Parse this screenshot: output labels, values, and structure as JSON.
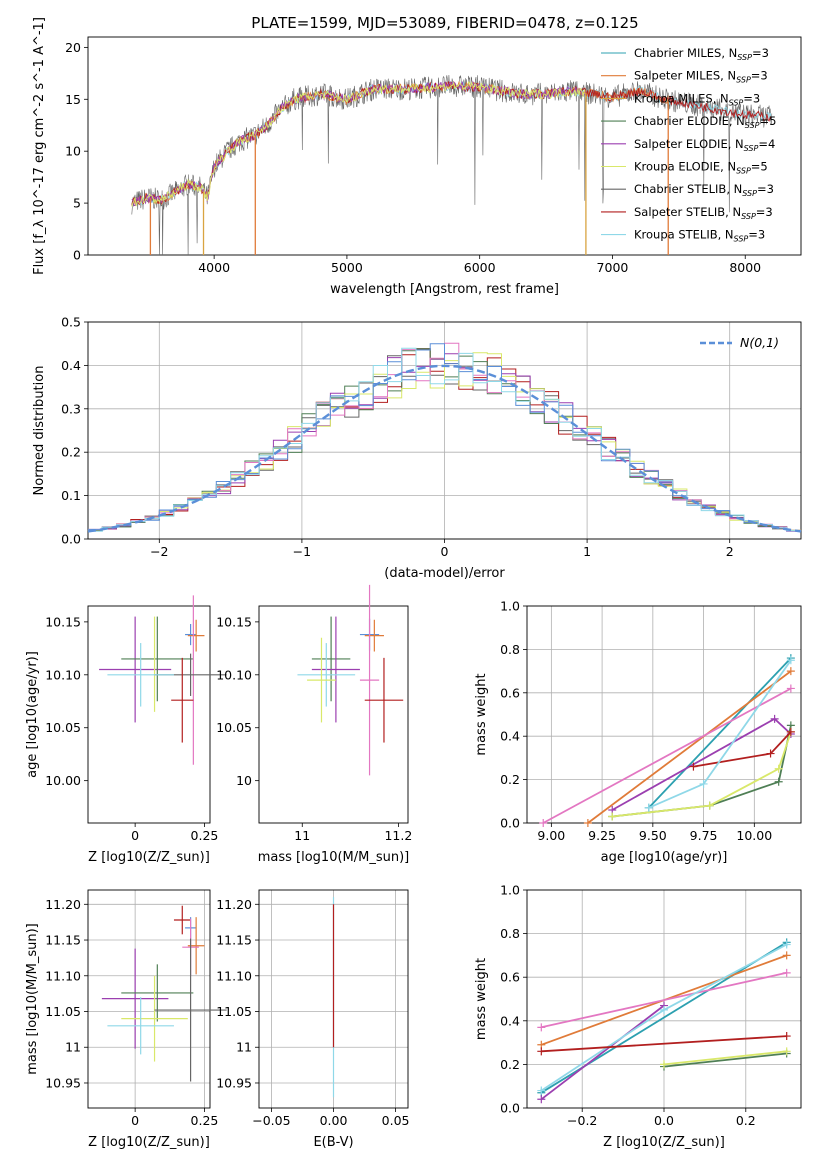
{
  "figure_title": "PLATE=1599, MJD=53089, FIBERID=0478, z=0.125",
  "colors": {
    "Chabrier MILES": "#2ca0b0",
    "Salpeter MILES": "#e07b39",
    "Kroupa MILES": "#d9a441",
    "Chabrier ELODIE": "#4f7f55",
    "Salpeter ELODIE": "#9b3fb0",
    "Kroupa ELODIE": "#d9e86a",
    "Chabrier STELIB": "#666666",
    "Salpeter STELIB": "#b21f1f",
    "Kroupa STELIB": "#8fd8e8",
    "pink": "#e377c2",
    "blue": "#5b8fd8"
  },
  "chart_data": [
    {
      "id": "spectrum",
      "type": "line",
      "xlabel": "wavelength [Angstrom, rest frame]",
      "ylabel": "Flux [f_λ 10^-17 erg cm^-2 s^-1 A^-1]",
      "xlim": [
        3050,
        8420
      ],
      "ylim": [
        0,
        21
      ],
      "xticks": [
        4000,
        5000,
        6000,
        7000,
        8000
      ],
      "yticks": [
        0,
        5,
        10,
        15,
        20
      ],
      "grid": false,
      "legend_position": "top-right",
      "legend": [
        {
          "label": "Chabrier MILES, N",
          "sub": "SSP",
          "tail": "=3",
          "color": "#2ca0b0"
        },
        {
          "label": "Salpeter MILES, N",
          "sub": "SSP",
          "tail": "=3",
          "color": "#e07b39"
        },
        {
          "label": "Kroupa MILES, N",
          "sub": "SSP",
          "tail": "=3",
          "color": "#d9a441"
        },
        {
          "label": "Chabrier ELODIE, N",
          "sub": "SSP",
          "tail": "=5",
          "color": "#4f7f55"
        },
        {
          "label": "Salpeter ELODIE, N",
          "sub": "SSP",
          "tail": "=4",
          "color": "#9b3fb0"
        },
        {
          "label": "Kroupa ELODIE, N",
          "sub": "SSP",
          "tail": "=5",
          "color": "#d9e86a"
        },
        {
          "label": "Chabrier STELIB, N",
          "sub": "SSP",
          "tail": "=3",
          "color": "#666666"
        },
        {
          "label": "Salpeter STELIB, N",
          "sub": "SSP",
          "tail": "=3",
          "color": "#b21f1f"
        },
        {
          "label": "Kroupa STELIB, N",
          "sub": "SSP",
          "tail": "=3",
          "color": "#8fd8e8"
        }
      ],
      "continuum_points": [
        [
          3380,
          5.0
        ],
        [
          3500,
          5.5
        ],
        [
          3600,
          5.3
        ],
        [
          3700,
          6.0
        ],
        [
          3800,
          6.8
        ],
        [
          3900,
          6.5
        ],
        [
          3950,
          5.5
        ],
        [
          4000,
          8.5
        ],
        [
          4100,
          10.0
        ],
        [
          4200,
          11.0
        ],
        [
          4300,
          11.5
        ],
        [
          4400,
          12.5
        ],
        [
          4500,
          14.0
        ],
        [
          4600,
          15.0
        ],
        [
          4800,
          15.5
        ],
        [
          5000,
          15.0
        ],
        [
          5200,
          16.0
        ],
        [
          5500,
          16.0
        ],
        [
          5800,
          16.3
        ],
        [
          6000,
          16.2
        ],
        [
          6300,
          15.5
        ],
        [
          6500,
          15.5
        ],
        [
          6700,
          15.8
        ],
        [
          7000,
          15.2
        ],
        [
          7200,
          15.8
        ],
        [
          7400,
          15.0
        ],
        [
          7600,
          14.5
        ],
        [
          7800,
          14.0
        ],
        [
          8000,
          13.5
        ],
        [
          8200,
          13.3
        ]
      ],
      "model_end_wavelength": {
        "MILES": 7420,
        "ELODIE": 6800,
        "STELIB": 8200
      }
    },
    {
      "id": "residuals",
      "type": "line",
      "xlabel": "(data-model)/error",
      "ylabel": "Normed distribution",
      "xlim": [
        -2.5,
        2.5
      ],
      "ylim": [
        0,
        0.5
      ],
      "xticks": [
        -2,
        -1,
        0,
        1,
        2
      ],
      "yticks": [
        0.0,
        0.1,
        0.2,
        0.3,
        0.4,
        0.5
      ],
      "grid": true,
      "legend_position": "top-right",
      "legend": [
        {
          "label": "N(0,1)",
          "style": "dashed",
          "color": "#5b8fd8"
        }
      ],
      "histogram": {
        "bin_start": -2.5,
        "bin_width": 0.1,
        "n_bins": 50
      },
      "gaussian": {
        "mean": 0,
        "sigma": 1
      }
    },
    {
      "id": "age_vs_Z",
      "type": "scatter",
      "xlabel": "Z [log10(Z/Z_sun)]",
      "ylabel": "age [log10(age/yr)]",
      "xlim": [
        -0.17,
        0.27
      ],
      "ylim": [
        9.96,
        10.165
      ],
      "xticks": [
        0.0,
        0.25
      ],
      "ytick_labels": [
        "10.15",
        "10.10",
        "10.05",
        "10.00"
      ],
      "yticks": [
        10.15,
        10.1,
        10.05,
        10.0
      ],
      "grid": false,
      "points": [
        {
          "x": 0.2,
          "y": 10.138,
          "xerr": 0.02,
          "yerr": 0.01,
          "color": "#5b8fd8"
        },
        {
          "x": 0.22,
          "y": 10.137,
          "xerr": 0.03,
          "yerr": 0.015,
          "color": "#e07b39"
        },
        {
          "x": 0.0,
          "y": 10.105,
          "xerr": 0.13,
          "yerr": 0.05,
          "color": "#9b3fb0"
        },
        {
          "x": 0.08,
          "y": 10.115,
          "xerr": 0.13,
          "yerr": 0.04,
          "color": "#4f7f55"
        },
        {
          "x": 0.07,
          "y": 10.11,
          "xerr": 0.0,
          "yerr": 0.045,
          "color": "#d9e86a"
        },
        {
          "x": 0.21,
          "y": 10.095,
          "xerr": 0.0,
          "yerr": 0.08,
          "color": "#e377c2"
        },
        {
          "x": 0.2,
          "y": 10.1,
          "xerr": 0.13,
          "yerr": 0.02,
          "color": "#666666"
        },
        {
          "x": 0.02,
          "y": 10.1,
          "xerr": 0.12,
          "yerr": 0.03,
          "color": "#8fd8e8"
        },
        {
          "x": 0.17,
          "y": 10.076,
          "xerr": 0.04,
          "yerr": 0.04,
          "color": "#b21f1f"
        }
      ]
    },
    {
      "id": "age_vs_mass",
      "type": "scatter",
      "xlabel": "mass [log10(M/M_sun)]",
      "ylabel": "",
      "xlim": [
        10.91,
        11.22
      ],
      "ylim": [
        9.96,
        10.165
      ],
      "xticks": [
        11.0,
        11.2
      ],
      "yticks": [
        10.15,
        10.1,
        10.05,
        10.0
      ],
      "grid": false,
      "points": [
        {
          "x": 11.06,
          "y": 10.115,
          "xerr": 0.04,
          "yerr": 0.04,
          "color": "#4f7f55"
        },
        {
          "x": 11.07,
          "y": 10.105,
          "xerr": 0.05,
          "yerr": 0.05,
          "color": "#9b3fb0"
        },
        {
          "x": 11.05,
          "y": 10.1,
          "xerr": 0.06,
          "yerr": 0.03,
          "color": "#8fd8e8"
        },
        {
          "x": 11.04,
          "y": 10.095,
          "xerr": 0.03,
          "yerr": 0.04,
          "color": "#d9e86a"
        },
        {
          "x": 11.14,
          "y": 10.138,
          "xerr": 0.02,
          "yerr": 0.015,
          "color": "#5b8fd8"
        },
        {
          "x": 11.15,
          "y": 10.137,
          "xerr": 0.02,
          "yerr": 0.015,
          "color": "#e07b39"
        },
        {
          "x": 11.14,
          "y": 10.095,
          "xerr": 0.02,
          "yerr": 0.09,
          "color": "#e377c2"
        },
        {
          "x": 11.17,
          "y": 10.076,
          "xerr": 0.04,
          "yerr": 0.04,
          "color": "#b21f1f"
        }
      ]
    },
    {
      "id": "weight_vs_age",
      "type": "line",
      "xlabel": "age [log10(age/yr)]",
      "ylabel": "mass weight",
      "xlim": [
        8.88,
        10.23
      ],
      "ylim": [
        0,
        1
      ],
      "xticks": [
        9.0,
        9.25,
        9.5,
        9.75,
        10.0
      ],
      "xtick_labels": [
        "9.00",
        "9.25",
        "9.50",
        "9.75",
        "10.00"
      ],
      "yticks": [
        0.0,
        0.2,
        0.4,
        0.6,
        0.8,
        1.0
      ],
      "grid": true,
      "series": [
        {
          "x": [
            9.48,
            10.18
          ],
          "y": [
            0.07,
            0.76
          ],
          "color": "#2ca0b0"
        },
        {
          "x": [
            9.18,
            10.18
          ],
          "y": [
            0.0,
            0.7
          ],
          "color": "#e07b39"
        },
        {
          "x": [
            8.96,
            10.18
          ],
          "y": [
            0.0,
            0.62
          ],
          "color": "#e377c2"
        },
        {
          "x": [
            9.3,
            10.1,
            10.18
          ],
          "y": [
            0.06,
            0.48,
            0.41
          ],
          "color": "#9b3fb0"
        },
        {
          "x": [
            9.3,
            9.78,
            10.12,
            10.18
          ],
          "y": [
            0.03,
            0.08,
            0.19,
            0.45
          ],
          "color": "#4f7f55"
        },
        {
          "x": [
            9.3,
            9.78,
            10.12,
            10.18
          ],
          "y": [
            0.03,
            0.08,
            0.25,
            0.42
          ],
          "color": "#d9e86a"
        },
        {
          "x": [
            9.7,
            10.08,
            10.18
          ],
          "y": [
            0.26,
            0.32,
            0.42
          ],
          "color": "#b21f1f"
        },
        {
          "x": [
            9.48,
            9.75,
            10.18
          ],
          "y": [
            0.07,
            0.18,
            0.75
          ],
          "color": "#8fd8e8"
        }
      ]
    },
    {
      "id": "mass_vs_Z",
      "type": "scatter",
      "xlabel": "Z [log10(Z/Z_sun)]",
      "ylabel": "mass [log10(M/M_sun)]",
      "xlim": [
        -0.17,
        0.27
      ],
      "ylim": [
        10.915,
        11.22
      ],
      "xticks": [
        0.0,
        0.25
      ],
      "yticks": [
        10.95,
        11.0,
        11.05,
        11.1,
        11.15,
        11.2
      ],
      "grid": true,
      "points": [
        {
          "x": 0.17,
          "y": 11.178,
          "xerr": 0.03,
          "yerr": 0.02,
          "color": "#b21f1f"
        },
        {
          "x": 0.2,
          "y": 11.167,
          "xerr": 0.02,
          "yerr": 0.015,
          "color": "#5b8fd8"
        },
        {
          "x": 0.22,
          "y": 11.142,
          "xerr": 0.03,
          "yerr": 0.04,
          "color": "#e07b39"
        },
        {
          "x": 0.2,
          "y": 11.14,
          "xerr": 0.03,
          "yerr": 0.04,
          "color": "#e377c2"
        },
        {
          "x": 0.0,
          "y": 11.068,
          "xerr": 0.12,
          "yerr": 0.07,
          "color": "#9b3fb0"
        },
        {
          "x": 0.08,
          "y": 11.076,
          "xerr": 0.13,
          "yerr": 0.04,
          "color": "#4f7f55"
        },
        {
          "x": 0.07,
          "y": 11.04,
          "xerr": 0.12,
          "yerr": 0.06,
          "color": "#d9e86a"
        },
        {
          "x": 0.2,
          "y": 11.052,
          "xerr": 0.13,
          "yerr": 0.1,
          "color": "#666666"
        },
        {
          "x": 0.02,
          "y": 11.03,
          "xerr": 0.12,
          "yerr": 0.04,
          "color": "#8fd8e8"
        }
      ]
    },
    {
      "id": "mass_vs_ebv",
      "type": "scatter",
      "xlabel": "E(B-V)",
      "ylabel": "",
      "xlim": [
        -0.06,
        0.06
      ],
      "ylim": [
        10.915,
        11.22
      ],
      "xticks": [
        -0.05,
        0.0,
        0.05
      ],
      "xtick_labels": [
        "−0.05",
        "0.00",
        "0.05"
      ],
      "yticks": [
        10.95,
        11.0,
        11.05,
        11.1,
        11.15,
        11.2
      ],
      "grid": true,
      "points": [
        {
          "x": 0.0,
          "y": 11.07,
          "xerr": 0,
          "yerr": 0.14,
          "color": "#8fd8e8"
        },
        {
          "x": 0.0,
          "y": 11.1,
          "xerr": 0,
          "yerr": 0.1,
          "color": "#b21f1f"
        }
      ]
    },
    {
      "id": "weight_vs_Z",
      "type": "line",
      "xlabel": "Z [log10(Z/Z_sun)]",
      "ylabel": "mass weight",
      "xlim": [
        -0.335,
        0.335
      ],
      "ylim": [
        0,
        1
      ],
      "xticks": [
        -0.2,
        0.0,
        0.2
      ],
      "xtick_labels": [
        "−0.2",
        "0.0",
        "0.2"
      ],
      "yticks": [
        0.0,
        0.2,
        0.4,
        0.6,
        0.8,
        1.0
      ],
      "grid": true,
      "series": [
        {
          "x": [
            -0.3,
            0.3
          ],
          "y": [
            0.07,
            0.76
          ],
          "color": "#2ca0b0"
        },
        {
          "x": [
            -0.3,
            0.3
          ],
          "y": [
            0.29,
            0.7
          ],
          "color": "#e07b39"
        },
        {
          "x": [
            -0.3,
            0.3
          ],
          "y": [
            0.37,
            0.62
          ],
          "color": "#e377c2"
        },
        {
          "x": [
            -0.3,
            0.0
          ],
          "y": [
            0.04,
            0.47
          ],
          "color": "#9b3fb0"
        },
        {
          "x": [
            0.0,
            0.3
          ],
          "y": [
            0.19,
            0.25
          ],
          "color": "#4f7f55"
        },
        {
          "x": [
            -0.3,
            0.0,
            0.3
          ],
          "y": [
            0.08,
            0.45,
            0.75
          ],
          "color": "#8fd8e8"
        },
        {
          "x": [
            0.0,
            0.3
          ],
          "y": [
            0.2,
            0.26
          ],
          "color": "#d9e86a"
        },
        {
          "x": [
            -0.3,
            0.3
          ],
          "y": [
            0.26,
            0.33
          ],
          "color": "#b21f1f"
        }
      ]
    }
  ]
}
